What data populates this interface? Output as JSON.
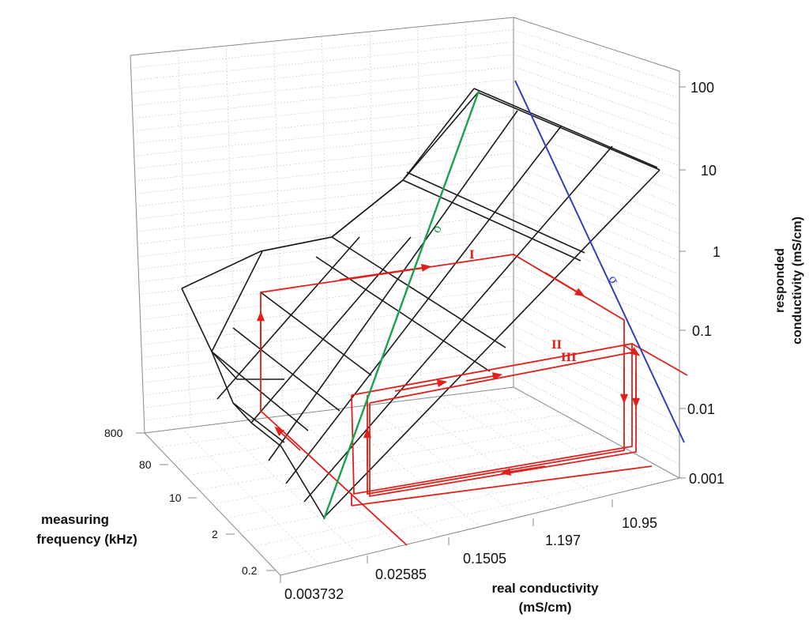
{
  "chart_data": {
    "type": "surface-3d",
    "z_axis": {
      "label_line1": "responded",
      "label_line2": "conductivity (mS/cm)",
      "ticks": [
        "100",
        "10",
        "1",
        "0.1",
        "0.01",
        "0.001"
      ]
    },
    "x_axis": {
      "label_line1": "real conductivity",
      "label_line2": "(mS/cm)",
      "ticks": [
        "0.003732",
        "0.02585",
        "0.1505",
        "1.197",
        "10.95"
      ]
    },
    "y_axis": {
      "label_line1": "measuring",
      "label_line2": "frequency (kHz)",
      "ticks": [
        "0.2",
        "2",
        "10",
        "80",
        "800"
      ]
    },
    "annotations": {
      "green_line": "σ",
      "blue_line": "σ",
      "path_1": "I",
      "path_2": "II",
      "path_3": "III"
    },
    "colors": {
      "surface": "#1a1a1a",
      "grid": "#b8b8b8",
      "path": "#e0201b",
      "green_line": "#17a34a",
      "blue_line": "#2f3fc0"
    }
  }
}
